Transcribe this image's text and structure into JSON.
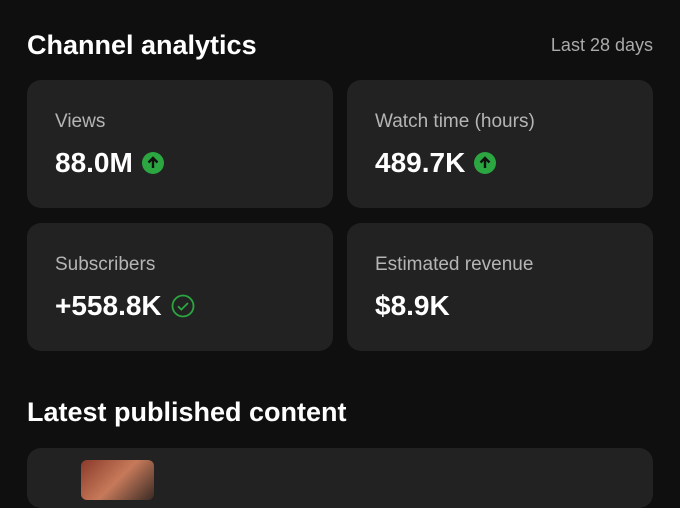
{
  "header": {
    "title": "Channel analytics",
    "period": "Last 28 days"
  },
  "cards": [
    {
      "label": "Views",
      "value": "88.0M"
    },
    {
      "label": "Watch time (hours)",
      "value": "489.7K"
    },
    {
      "label": "Subscribers",
      "value": "+558.8K"
    },
    {
      "label": "Estimated revenue",
      "value": "$8.9K"
    }
  ],
  "latest": {
    "title": "Latest published content"
  }
}
